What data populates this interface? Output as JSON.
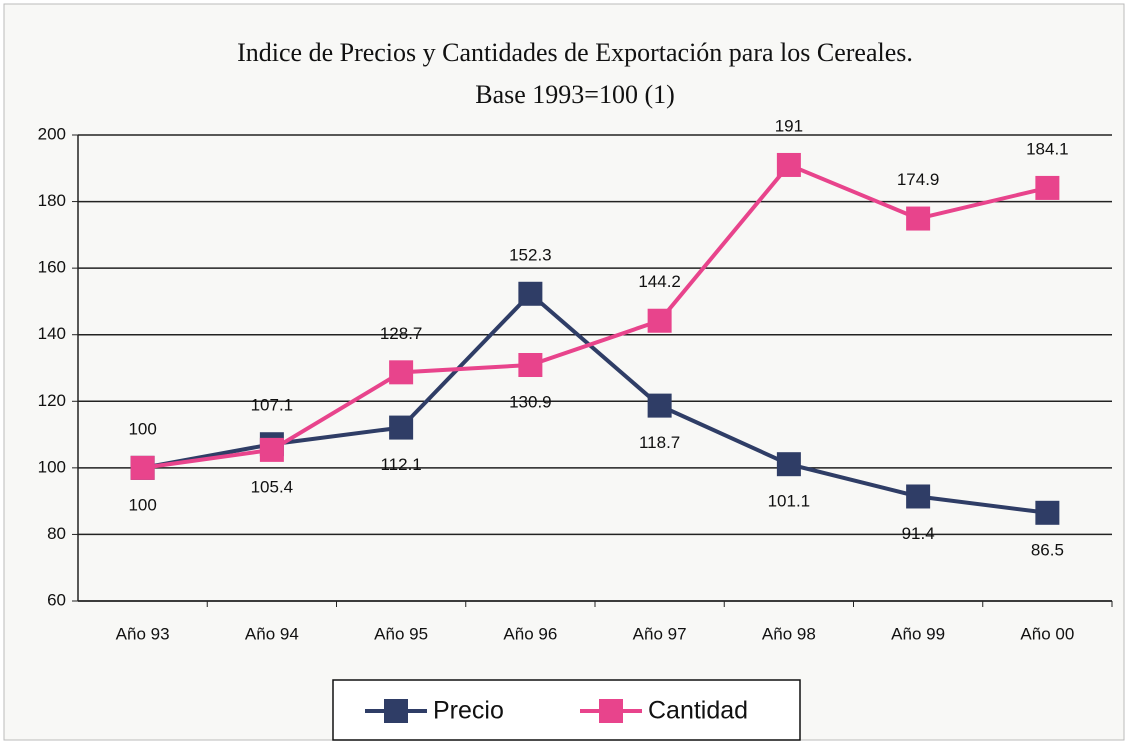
{
  "chart_data": {
    "type": "line",
    "title": [
      "Indice de Precios y Cantidades de Exportación para los Cereales.",
      "Base 1993=100 (1)"
    ],
    "categories": [
      "Año 93",
      "Año 94",
      "Año 95",
      "Año 96",
      "Año 97",
      "Año 98",
      "Año 99",
      "Año 00"
    ],
    "series": [
      {
        "name": "Precio",
        "color": "#2f3d66",
        "values": [
          100,
          107.1,
          112.1,
          152.3,
          118.7,
          101.1,
          91.4,
          86.5
        ]
      },
      {
        "name": "Cantidad",
        "color": "#e8448c",
        "values": [
          100,
          105.4,
          128.7,
          130.9,
          144.2,
          191,
          174.9,
          184.1
        ]
      }
    ],
    "ylim": [
      60,
      200
    ],
    "yticks": [
      60,
      80,
      100,
      120,
      140,
      160,
      180,
      200
    ],
    "grid": true,
    "legend": "bottom"
  }
}
